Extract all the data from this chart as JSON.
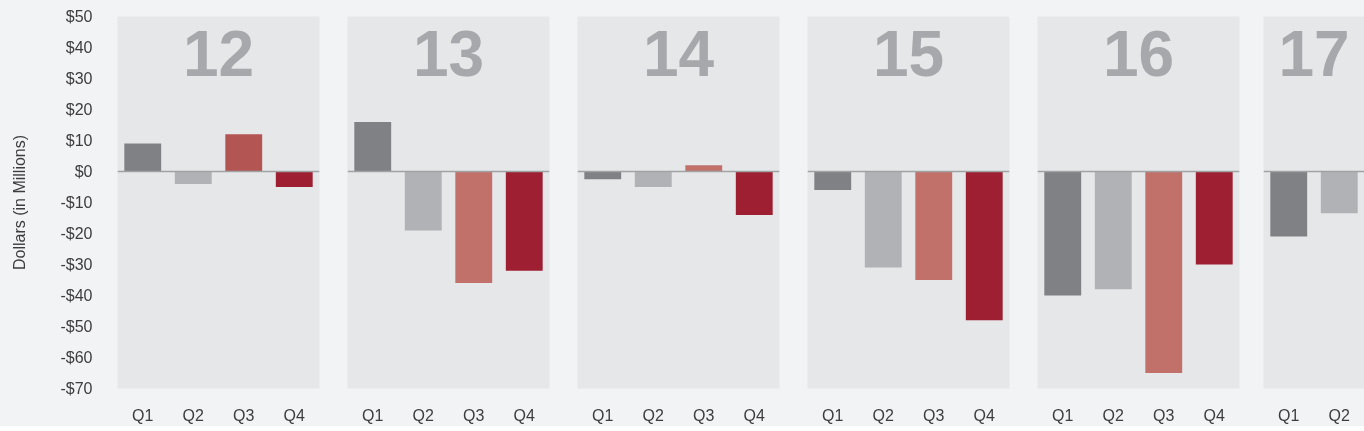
{
  "chart_data": [
    {
      "type": "bar",
      "title": "12",
      "ylabel": "Dollars (in Millions)",
      "categories": [
        "Q1",
        "Q2",
        "Q3",
        "Q4"
      ],
      "values": [
        9,
        -4,
        12,
        -5
      ],
      "colors": [
        "#808184",
        "#b1b2b5",
        "#b35552",
        "#9e1f31"
      ],
      "ylim": [
        -70,
        50
      ],
      "yticks": [
        {
          "value": 50,
          "label": "$50"
        },
        {
          "value": 40,
          "label": "$40"
        },
        {
          "value": 30,
          "label": "$30"
        },
        {
          "value": 20,
          "label": "$20"
        },
        {
          "value": 10,
          "label": "$10"
        },
        {
          "value": 0,
          "label": "$0"
        },
        {
          "value": -10,
          "label": "-$10"
        },
        {
          "value": -20,
          "label": "-$20"
        },
        {
          "value": -30,
          "label": "-$30"
        },
        {
          "value": -40,
          "label": "-$40"
        },
        {
          "value": -50,
          "label": "-$50"
        },
        {
          "value": -60,
          "label": "-$60"
        },
        {
          "value": -70,
          "label": "-$70"
        }
      ],
      "ref_lines": [
        {
          "axis": "y",
          "value": 0,
          "color": "#a1a2a4"
        }
      ]
    },
    {
      "type": "bar",
      "title": "13",
      "categories": [
        "Q1",
        "Q2",
        "Q3",
        "Q4"
      ],
      "values": [
        16,
        -19,
        -36,
        -32
      ],
      "colors": [
        "#808184",
        "#b1b2b5",
        "#c2716a",
        "#9e1f31"
      ],
      "ylim": [
        -70,
        50
      ],
      "tick_labels": "x",
      "ref_lines": [
        {
          "axis": "y",
          "value": 0,
          "color": "#a1a2a4"
        }
      ]
    },
    {
      "type": "bar",
      "title": "14",
      "categories": [
        "Q1",
        "Q2",
        "Q3",
        "Q4"
      ],
      "values": [
        -2.5,
        -5,
        2,
        -14
      ],
      "colors": [
        "#808184",
        "#b1b2b5",
        "#c2716a",
        "#9e1f31"
      ],
      "ylim": [
        -70,
        50
      ],
      "tick_labels": "x",
      "ref_lines": [
        {
          "axis": "y",
          "value": 0,
          "color": "#a1a2a4"
        }
      ]
    },
    {
      "type": "bar",
      "title": "15",
      "categories": [
        "Q1",
        "Q2",
        "Q3",
        "Q4"
      ],
      "values": [
        -6,
        -31,
        -35,
        -48
      ],
      "colors": [
        "#808184",
        "#b1b2b5",
        "#c2716a",
        "#9e1f31"
      ],
      "ylim": [
        -70,
        50
      ],
      "tick_labels": "x",
      "ref_lines": [
        {
          "axis": "y",
          "value": 0,
          "color": "#a1a2a4"
        }
      ]
    },
    {
      "type": "bar",
      "title": "16",
      "categories": [
        "Q1",
        "Q2",
        "Q3",
        "Q4"
      ],
      "values": [
        -40,
        -38,
        -65,
        -30
      ],
      "colors": [
        "#808184",
        "#b1b2b5",
        "#c2716a",
        "#9e1f31"
      ],
      "ylim": [
        -70,
        50
      ],
      "tick_labels": "x",
      "ref_lines": [
        {
          "axis": "y",
          "value": 0,
          "color": "#a1a2a4"
        }
      ]
    },
    {
      "type": "bar",
      "title": "17",
      "categories": [
        "Q1",
        "Q2"
      ],
      "values": [
        -21,
        -13.5
      ],
      "colors": [
        "#808184",
        "#b1b2b5"
      ],
      "ylim": [
        -70,
        50
      ],
      "tick_labels": "x",
      "ref_lines": [
        {
          "axis": "y",
          "value": 0,
          "color": "#a1a2a4"
        }
      ]
    }
  ]
}
